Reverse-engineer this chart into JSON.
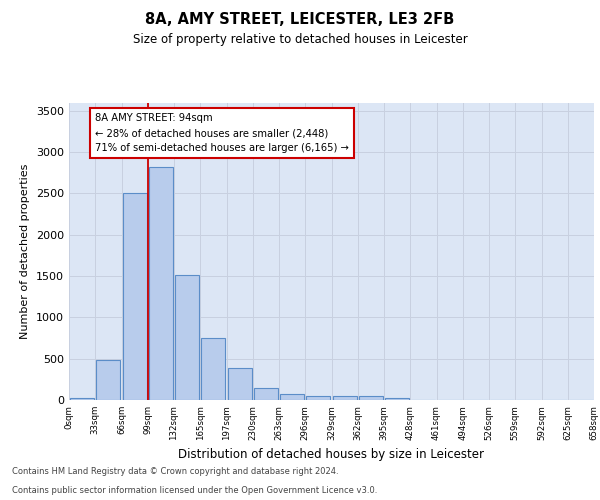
{
  "title": "8A, AMY STREET, LEICESTER, LE3 2FB",
  "subtitle": "Size of property relative to detached houses in Leicester",
  "xlabel": "Distribution of detached houses by size in Leicester",
  "ylabel": "Number of detached properties",
  "bar_heights": [
    25,
    480,
    2510,
    2820,
    1510,
    750,
    385,
    140,
    75,
    50,
    50,
    50,
    25,
    0,
    0,
    0,
    0,
    0,
    0,
    0
  ],
  "bar_color": "#b8ccec",
  "bar_edge_color": "#5b8dc8",
  "grid_color": "#c8d0e0",
  "bg_color": "#dce6f5",
  "property_bin_index": 3,
  "vline_color": "#cc0000",
  "annotation_text": "8A AMY STREET: 94sqm\n← 28% of detached houses are smaller (2,448)\n71% of semi-detached houses are larger (6,165) →",
  "annotation_box_color": "#ffffff",
  "annotation_box_edge": "#cc0000",
  "ylim": [
    0,
    3600
  ],
  "yticks": [
    0,
    500,
    1000,
    1500,
    2000,
    2500,
    3000,
    3500
  ],
  "footer_line1": "Contains HM Land Registry data © Crown copyright and database right 2024.",
  "footer_line2": "Contains public sector information licensed under the Open Government Licence v3.0.",
  "tick_labels": [
    "0sqm",
    "33sqm",
    "66sqm",
    "99sqm",
    "132sqm",
    "165sqm",
    "197sqm",
    "230sqm",
    "263sqm",
    "296sqm",
    "329sqm",
    "362sqm",
    "395sqm",
    "428sqm",
    "461sqm",
    "494sqm",
    "526sqm",
    "559sqm",
    "592sqm",
    "625sqm",
    "658sqm"
  ],
  "n_bars": 20
}
